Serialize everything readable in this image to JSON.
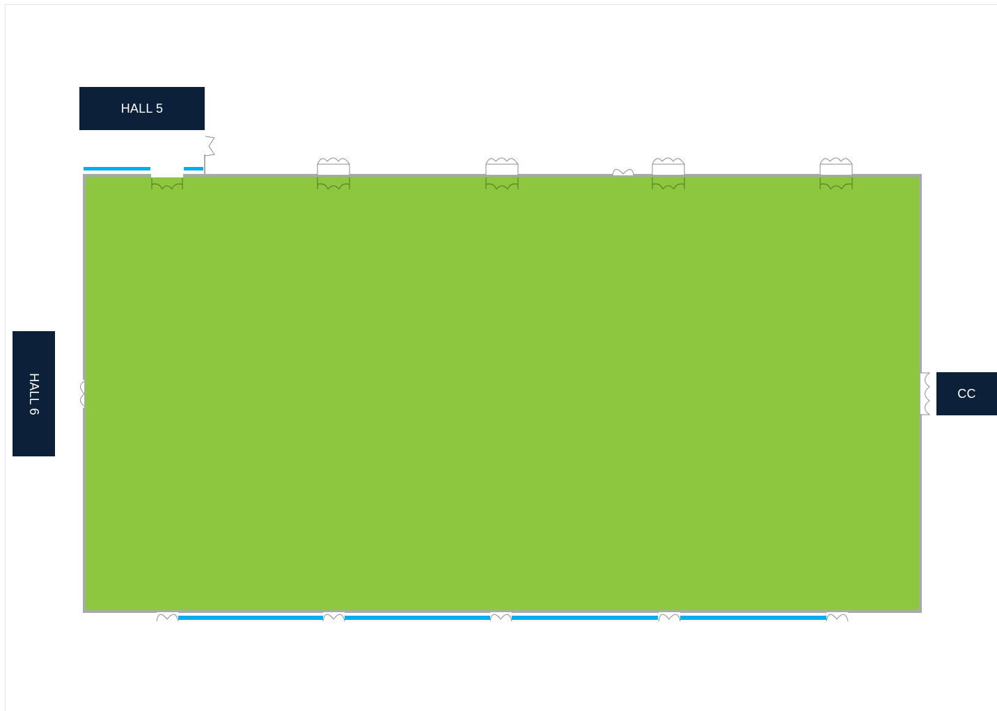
{
  "labels": {
    "hall5": "HALL 5",
    "hall6": "HALL 6",
    "cc": "CC"
  },
  "colors": {
    "hall_fill": "#8dc63f",
    "wall": "#a7a9ac",
    "glazing": "#00aeef",
    "label_bg": "#0c2139",
    "label_text": "#ffffff",
    "door_line": "#8a8c8e",
    "door_line_inside": "#4f7a1f"
  }
}
